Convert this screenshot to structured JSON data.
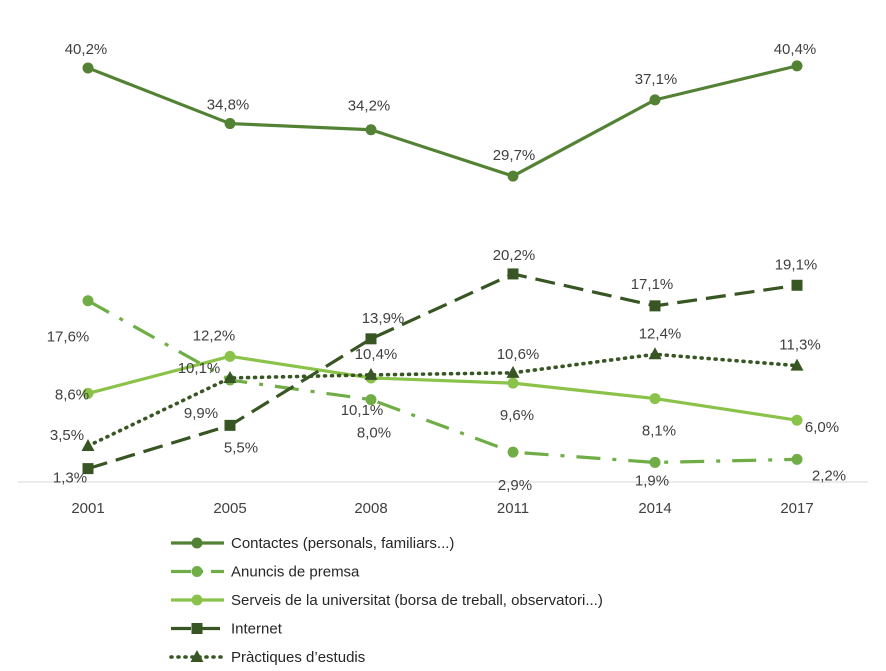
{
  "chart_data": {
    "type": "line",
    "title": "",
    "xlabel": "",
    "ylabel": "",
    "ylim": [
      0,
      42
    ],
    "grid": false,
    "legend_position": "bottom",
    "categories": [
      "2001",
      "2005",
      "2008",
      "2011",
      "2014",
      "2017"
    ],
    "series": [
      {
        "name": "Contactes (personals, familiars...)",
        "values": [
          40.2,
          34.8,
          34.2,
          29.7,
          37.1,
          40.4
        ],
        "labels": [
          "40,2%",
          "34,8%",
          "34,2%",
          "29,7%",
          "37,1%",
          "40,4%"
        ],
        "color": "#548235",
        "line_style": "solid",
        "marker": "circle"
      },
      {
        "name": "Anuncis de premsa",
        "values": [
          17.6,
          9.9,
          8.0,
          2.9,
          1.9,
          2.2
        ],
        "labels": [
          "17,6%",
          "9,9%",
          "8,0%",
          "2,9%",
          "1,9%",
          "2,2%"
        ],
        "color": "#70AD47",
        "line_style": "dash-dot",
        "marker": "circle"
      },
      {
        "name": "Serveis de la universitat (borsa de treball, observatori...)",
        "values": [
          8.6,
          12.2,
          10.1,
          9.6,
          8.1,
          6.0
        ],
        "labels": [
          "8,6%",
          "12,2%",
          "10,1%",
          "9,6%",
          "8,1%",
          "6,0%"
        ],
        "color": "#8BC34A",
        "line_style": "solid",
        "marker": "circle"
      },
      {
        "name": "Internet",
        "values": [
          1.3,
          5.5,
          13.9,
          20.2,
          17.1,
          19.1
        ],
        "labels": [
          "1,3%",
          "5,5%",
          "13,9%",
          "20,2%",
          "17,1%",
          "19,1%"
        ],
        "color": "#375623",
        "line_style": "long-dash",
        "marker": "square"
      },
      {
        "name": "Pràctiques d’estudis",
        "values": [
          3.5,
          10.1,
          10.4,
          10.6,
          12.4,
          11.3
        ],
        "labels": [
          "3,5%",
          "10,1%",
          "10,4%",
          "10,6%",
          "12,4%",
          "11,3%"
        ],
        "color": "#375623",
        "line_style": "dotted",
        "marker": "triangle"
      }
    ]
  }
}
